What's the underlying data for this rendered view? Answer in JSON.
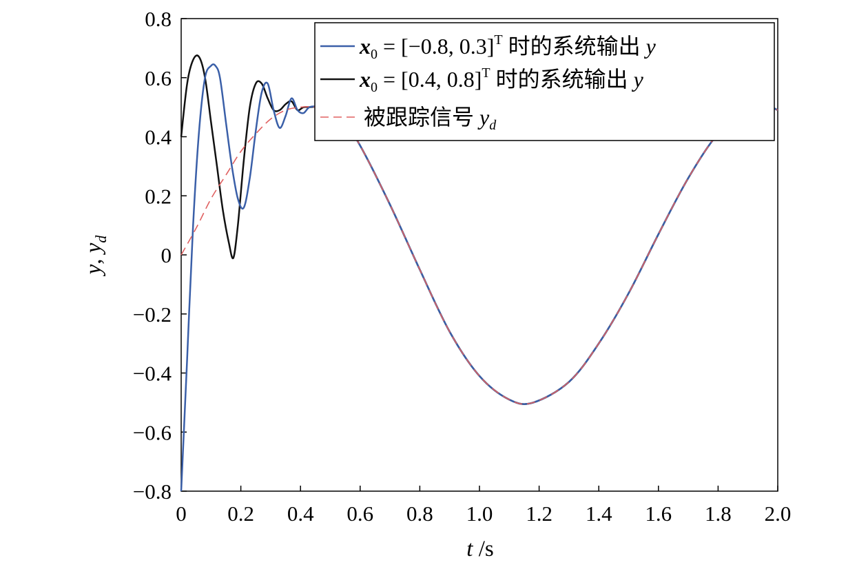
{
  "chart_data": {
    "type": "line",
    "xlabel": {
      "var": "t",
      "unit": " /s"
    },
    "ylabel": {
      "y": "y",
      "sep": ", ",
      "yd": "y",
      "yd_sub": "d"
    },
    "xlim": [
      0,
      2.0
    ],
    "ylim": [
      -0.8,
      0.8
    ],
    "x_ticks": [
      "0",
      "0.2",
      "0.4",
      "0.6",
      "0.8",
      "1.0",
      "1.2",
      "1.4",
      "1.6",
      "1.8",
      "2.0"
    ],
    "y_ticks": [
      "−0.8",
      "−0.6",
      "−0.4",
      "−0.2",
      "0",
      "0.2",
      "0.4",
      "0.6",
      "0.8"
    ],
    "grid": false,
    "legend_position": "top-right",
    "legend": [
      {
        "sym": "x",
        "sub": "0",
        "eq": " = [−0.8, 0.3]",
        "sup": "T",
        "text": " 时的系统输出 ",
        "var": "y",
        "var_sub": ""
      },
      {
        "sym": "x",
        "sub": "0",
        "eq": " = [0.4, 0.8]",
        "sup": "T",
        "text": " 时的系统输出 ",
        "var": "y",
        "var_sub": ""
      },
      {
        "sym": "",
        "sub": "",
        "eq": "",
        "sup": "",
        "text": "被跟踪信号 ",
        "var": "y",
        "var_sub": "d"
      }
    ],
    "colors": {
      "series1": "#3a5fa8",
      "series2": "#111111",
      "reference": "#e06060"
    },
    "series": [
      {
        "name": "x0 = [−0.8, 0.3]T 时的系统输出 y",
        "x": [
          0,
          0.02,
          0.04,
          0.06,
          0.08,
          0.1,
          0.115,
          0.13,
          0.15,
          0.17,
          0.19,
          0.21,
          0.23,
          0.25,
          0.27,
          0.29,
          0.31,
          0.33,
          0.35,
          0.37,
          0.39,
          0.41,
          0.43,
          0.46,
          0.5,
          0.55,
          0.6,
          0.7,
          0.8,
          0.9,
          1.0,
          1.1,
          1.18,
          1.3,
          1.4,
          1.5,
          1.6,
          1.7,
          1.8,
          1.9,
          1.97,
          2.0
        ],
        "y": [
          -0.8,
          -0.35,
          0.1,
          0.42,
          0.6,
          0.64,
          0.64,
          0.6,
          0.45,
          0.3,
          0.19,
          0.16,
          0.26,
          0.42,
          0.55,
          0.58,
          0.49,
          0.43,
          0.47,
          0.53,
          0.49,
          0.48,
          0.5,
          0.5,
          0.48,
          0.44,
          0.37,
          0.17,
          -0.05,
          -0.26,
          -0.41,
          -0.49,
          -0.5,
          -0.43,
          -0.3,
          -0.13,
          0.07,
          0.26,
          0.41,
          0.49,
          0.5,
          0.49
        ]
      },
      {
        "name": "x0 = [0.4, 0.8]T 时的系统输出 y",
        "x": [
          0,
          0.02,
          0.04,
          0.06,
          0.08,
          0.1,
          0.12,
          0.14,
          0.16,
          0.175,
          0.19,
          0.21,
          0.23,
          0.25,
          0.27,
          0.29,
          0.31,
          0.33,
          0.35,
          0.37,
          0.39,
          0.41,
          0.43,
          0.46,
          0.5,
          0.55,
          0.6,
          0.7,
          0.8,
          0.9,
          1.0,
          1.1,
          1.18,
          1.3,
          1.4,
          1.5,
          1.6,
          1.7,
          1.8,
          1.9,
          1.97,
          2.0
        ],
        "y": [
          0.4,
          0.58,
          0.66,
          0.67,
          0.6,
          0.45,
          0.3,
          0.15,
          0.04,
          -0.01,
          0.1,
          0.32,
          0.5,
          0.58,
          0.58,
          0.53,
          0.49,
          0.49,
          0.51,
          0.52,
          0.49,
          0.5,
          0.5,
          0.5,
          0.48,
          0.44,
          0.37,
          0.17,
          -0.05,
          -0.26,
          -0.41,
          -0.49,
          -0.5,
          -0.43,
          -0.3,
          -0.13,
          0.07,
          0.26,
          0.41,
          0.49,
          0.5,
          0.49
        ]
      },
      {
        "name": "被跟踪信号 yd",
        "x": [
          0,
          0.05,
          0.1,
          0.15,
          0.2,
          0.25,
          0.3,
          0.35,
          0.4,
          0.45,
          0.5,
          0.55,
          0.6,
          0.7,
          0.8,
          0.9,
          1.0,
          1.1,
          1.18,
          1.3,
          1.4,
          1.5,
          1.6,
          1.7,
          1.8,
          1.9,
          1.97,
          2.0
        ],
        "y": [
          0,
          0.09,
          0.19,
          0.27,
          0.35,
          0.41,
          0.46,
          0.49,
          0.5,
          0.5,
          0.48,
          0.44,
          0.37,
          0.17,
          -0.05,
          -0.26,
          -0.41,
          -0.49,
          -0.5,
          -0.43,
          -0.3,
          -0.13,
          0.07,
          0.26,
          0.41,
          0.49,
          0.5,
          0.49
        ]
      }
    ]
  }
}
